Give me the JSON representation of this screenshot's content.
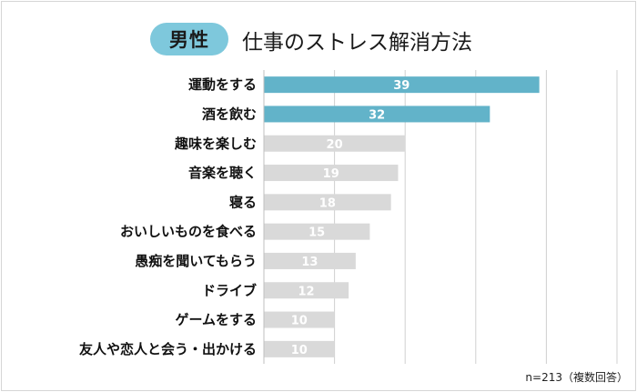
{
  "header": {
    "badge": "男性",
    "title": "仕事のストレス解消方法"
  },
  "footnote": "n=213（複数回答）",
  "colors": {
    "highlight": "#62b3c9",
    "normal": "#d9d9d9",
    "badge": "#7ec8dc",
    "grid": "#d0d0d0"
  },
  "chart_data": {
    "type": "bar",
    "orientation": "horizontal",
    "title": "仕事のストレス解消方法",
    "categories": [
      "運動をする",
      "酒を飲む",
      "趣味を楽しむ",
      "音楽を聴く",
      "寝る",
      "おいしいものを食べる",
      "愚痴を聞いてもらう",
      "ドライブ",
      "ゲームをする",
      "友人や恋人と会う・出かける"
    ],
    "values": [
      39,
      32,
      20,
      19,
      18,
      15,
      13,
      12,
      10,
      10
    ],
    "highlighted": [
      true,
      true,
      false,
      false,
      false,
      false,
      false,
      false,
      false,
      false
    ],
    "xlim": [
      0,
      50
    ],
    "grid": true,
    "xlabel": "",
    "ylabel": ""
  }
}
